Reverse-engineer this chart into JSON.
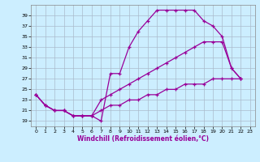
{
  "xlabel": "Windchill (Refroidissement éolien,°C)",
  "bg_color": "#cceeff",
  "line_color": "#990099",
  "grid_color": "#aabbcc",
  "xlim": [
    -0.5,
    23.5
  ],
  "ylim": [
    18,
    41
  ],
  "xticks": [
    0,
    1,
    2,
    3,
    4,
    5,
    6,
    7,
    8,
    9,
    10,
    11,
    12,
    13,
    14,
    15,
    16,
    17,
    18,
    19,
    20,
    21,
    22,
    23
  ],
  "yticks": [
    19,
    21,
    23,
    25,
    27,
    29,
    31,
    33,
    35,
    37,
    39
  ],
  "curve1_x": [
    0,
    1,
    2,
    3,
    4,
    5,
    6,
    7,
    8,
    9,
    10,
    11,
    12,
    13,
    14,
    15,
    16,
    17,
    18,
    19,
    20,
    21,
    22
  ],
  "curve1_y": [
    24,
    22,
    21,
    21,
    20,
    20,
    20,
    19,
    28,
    28,
    33,
    36,
    38,
    40,
    40,
    40,
    40,
    40,
    38,
    37,
    35,
    29,
    27
  ],
  "curve2_x": [
    0,
    1,
    2,
    3,
    4,
    5,
    6,
    7,
    8,
    9,
    10,
    11,
    12,
    13,
    14,
    15,
    16,
    17,
    18,
    19,
    20,
    21,
    22
  ],
  "curve2_y": [
    24,
    22,
    21,
    21,
    20,
    20,
    20,
    23,
    24,
    25,
    26,
    27,
    28,
    29,
    30,
    31,
    32,
    33,
    34,
    34,
    34,
    29,
    27
  ],
  "curve3_x": [
    0,
    1,
    2,
    3,
    4,
    5,
    6,
    7,
    8,
    9,
    10,
    11,
    12,
    13,
    14,
    15,
    16,
    17,
    18,
    19,
    20,
    21,
    22
  ],
  "curve3_y": [
    24,
    22,
    21,
    21,
    20,
    20,
    20,
    21,
    22,
    22,
    23,
    23,
    24,
    24,
    25,
    25,
    26,
    26,
    26,
    27,
    27,
    27,
    27
  ]
}
